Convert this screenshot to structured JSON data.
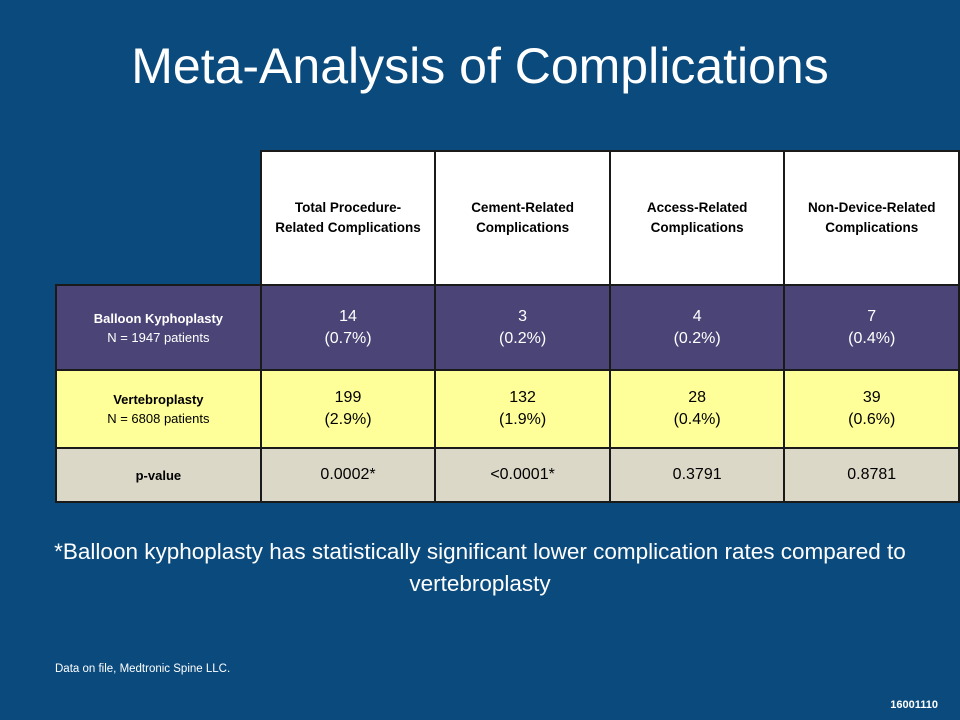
{
  "slide": {
    "title": "Meta-Analysis of Complications",
    "footnote": "*Balloon kyphoplasty has statistically significant lower complication rates compared to vertebroplasty",
    "source": "Data on file, Medtronic Spine LLC.",
    "slide_code": "16001110"
  },
  "table": {
    "columns": [
      "Total Procedure-Related Complications",
      "Cement-Related Complications",
      "Access-Related Complications",
      "Non-Device-Related Complications"
    ],
    "rows": [
      {
        "name": "Balloon Kyphoplasty",
        "n": "N = 1947 patients",
        "cells": [
          {
            "count": "14",
            "pct": "(0.7%)"
          },
          {
            "count": "3",
            "pct": "(0.2%)"
          },
          {
            "count": "4",
            "pct": "(0.2%)"
          },
          {
            "count": "7",
            "pct": "(0.4%)"
          }
        ]
      },
      {
        "name": "Vertebroplasty",
        "n": "N = 6808 patients",
        "cells": [
          {
            "count": "199",
            "pct": "(2.9%)"
          },
          {
            "count": "132",
            "pct": "(1.9%)"
          },
          {
            "count": "28",
            "pct": "(0.4%)"
          },
          {
            "count": "39",
            "pct": "(0.6%)"
          }
        ]
      }
    ],
    "pvalue": {
      "label": "p-value",
      "values": [
        "0.0002*",
        "<0.0001*",
        "0.3791",
        "0.8781"
      ]
    }
  },
  "colors": {
    "background": "#0b4a7d",
    "kyphoplasty_row": "#4b4577",
    "vertebroplasty_row": "#ffff99",
    "pvalue_row": "#dbd8c8"
  }
}
